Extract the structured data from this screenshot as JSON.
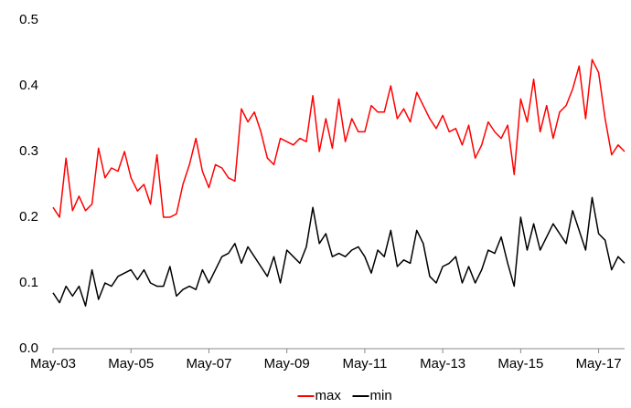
{
  "chart_data": {
    "type": "line",
    "categories": [
      "May-03",
      null,
      null,
      null,
      null,
      null,
      null,
      null,
      null,
      null,
      null,
      null,
      "May-05",
      null,
      null,
      null,
      null,
      null,
      null,
      null,
      null,
      null,
      null,
      null,
      "May-07",
      null,
      null,
      null,
      null,
      null,
      null,
      null,
      null,
      null,
      null,
      null,
      "May-09",
      null,
      null,
      null,
      null,
      null,
      null,
      null,
      null,
      null,
      null,
      null,
      "May-11",
      null,
      null,
      null,
      null,
      null,
      null,
      null,
      null,
      null,
      null,
      null,
      "May-13",
      null,
      null,
      null,
      null,
      null,
      null,
      null,
      null,
      null,
      null,
      null,
      "May-15",
      null,
      null,
      null,
      null,
      null,
      null,
      null,
      null,
      null,
      null,
      null,
      "May-17",
      null,
      null,
      null,
      null
    ],
    "series": [
      {
        "name": "max",
        "color": "#ff0000",
        "values": [
          0.215,
          0.2,
          0.29,
          0.21,
          0.232,
          0.21,
          0.22,
          0.305,
          0.26,
          0.275,
          0.27,
          0.3,
          0.26,
          0.24,
          0.25,
          0.22,
          0.295,
          0.2,
          0.2,
          0.205,
          0.25,
          0.28,
          0.32,
          0.27,
          0.245,
          0.28,
          0.275,
          0.26,
          0.255,
          0.365,
          0.345,
          0.36,
          0.33,
          0.29,
          0.28,
          0.32,
          0.315,
          0.31,
          0.32,
          0.315,
          0.385,
          0.3,
          0.35,
          0.305,
          0.38,
          0.315,
          0.35,
          0.33,
          0.33,
          0.37,
          0.36,
          0.36,
          0.4,
          0.35,
          0.365,
          0.345,
          0.39,
          0.37,
          0.35,
          0.335,
          0.355,
          0.33,
          0.335,
          0.31,
          0.34,
          0.29,
          0.31,
          0.345,
          0.33,
          0.32,
          0.34,
          0.265,
          0.38,
          0.345,
          0.41,
          0.33,
          0.37,
          0.32,
          0.36,
          0.37,
          0.395,
          0.43,
          0.35,
          0.44,
          0.42,
          0.35,
          0.295,
          0.31,
          0.3
        ]
      },
      {
        "name": "min",
        "color": "#000000",
        "values": [
          0.085,
          0.07,
          0.095,
          0.08,
          0.095,
          0.065,
          0.12,
          0.075,
          0.1,
          0.095,
          0.11,
          0.115,
          0.12,
          0.105,
          0.12,
          0.1,
          0.095,
          0.095,
          0.125,
          0.08,
          0.09,
          0.095,
          0.09,
          0.12,
          0.1,
          0.12,
          0.14,
          0.145,
          0.16,
          0.13,
          0.155,
          0.14,
          0.125,
          0.11,
          0.14,
          0.1,
          0.15,
          0.14,
          0.13,
          0.155,
          0.215,
          0.16,
          0.175,
          0.14,
          0.145,
          0.14,
          0.15,
          0.155,
          0.14,
          0.115,
          0.15,
          0.14,
          0.18,
          0.125,
          0.135,
          0.13,
          0.18,
          0.16,
          0.11,
          0.1,
          0.125,
          0.13,
          0.14,
          0.1,
          0.125,
          0.1,
          0.12,
          0.15,
          0.145,
          0.17,
          0.13,
          0.095,
          0.2,
          0.15,
          0.19,
          0.15,
          0.17,
          0.19,
          0.175,
          0.16,
          0.21,
          0.18,
          0.15,
          0.23,
          0.175,
          0.165,
          0.12,
          0.14,
          0.13
        ]
      }
    ],
    "ylim": [
      0,
      0.5
    ],
    "yticks": [
      {
        "value": 0,
        "label": "0.0"
      },
      0.1,
      0.2,
      0.3,
      0.4,
      0.5
    ],
    "grid": true,
    "legend": "bottom"
  }
}
